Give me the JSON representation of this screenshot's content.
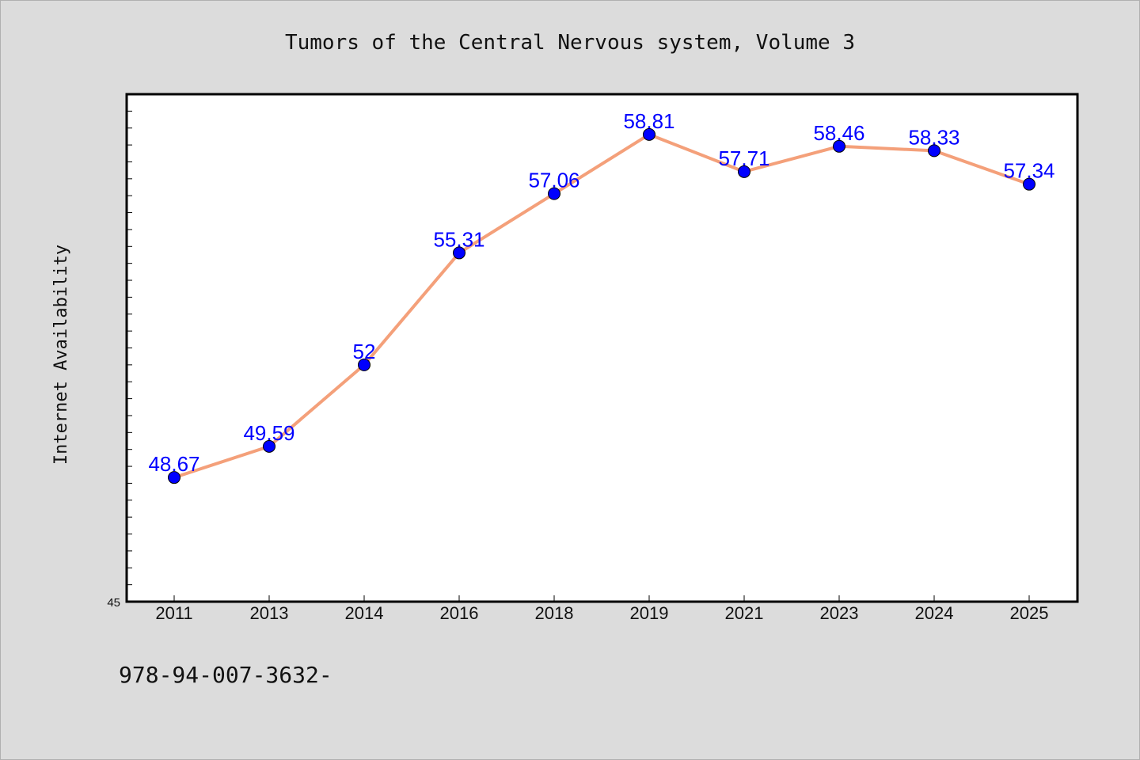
{
  "chart_data": {
    "type": "line",
    "title": "Tumors of the Central Nervous system, Volume 3",
    "xlabel": "",
    "ylabel": "Internet Availability",
    "categories": [
      "2011",
      "2013",
      "2014",
      "2016",
      "2018",
      "2019",
      "2021",
      "2023",
      "2024",
      "2025"
    ],
    "series": [
      {
        "values": [
          48.67,
          49.59,
          52,
          55.31,
          57.06,
          58.81,
          57.71,
          58.46,
          58.33,
          57.34
        ],
        "labels": [
          "48.67",
          "49.59",
          "52",
          "55.31",
          "57.06",
          "58.81",
          "57.71",
          "58.46",
          "58.33",
          "57.34"
        ]
      }
    ],
    "ylim": [
      45,
      60
    ],
    "ytick_label": "45",
    "grid": false,
    "legend": "none",
    "colors": {
      "line": "#f4a07a",
      "marker": "#0000ff",
      "data_label": "#0000ff",
      "background": "#dcdcdc",
      "plot_background": "#ffffff"
    }
  },
  "footer": {
    "text": "978-94-007-3632-"
  }
}
